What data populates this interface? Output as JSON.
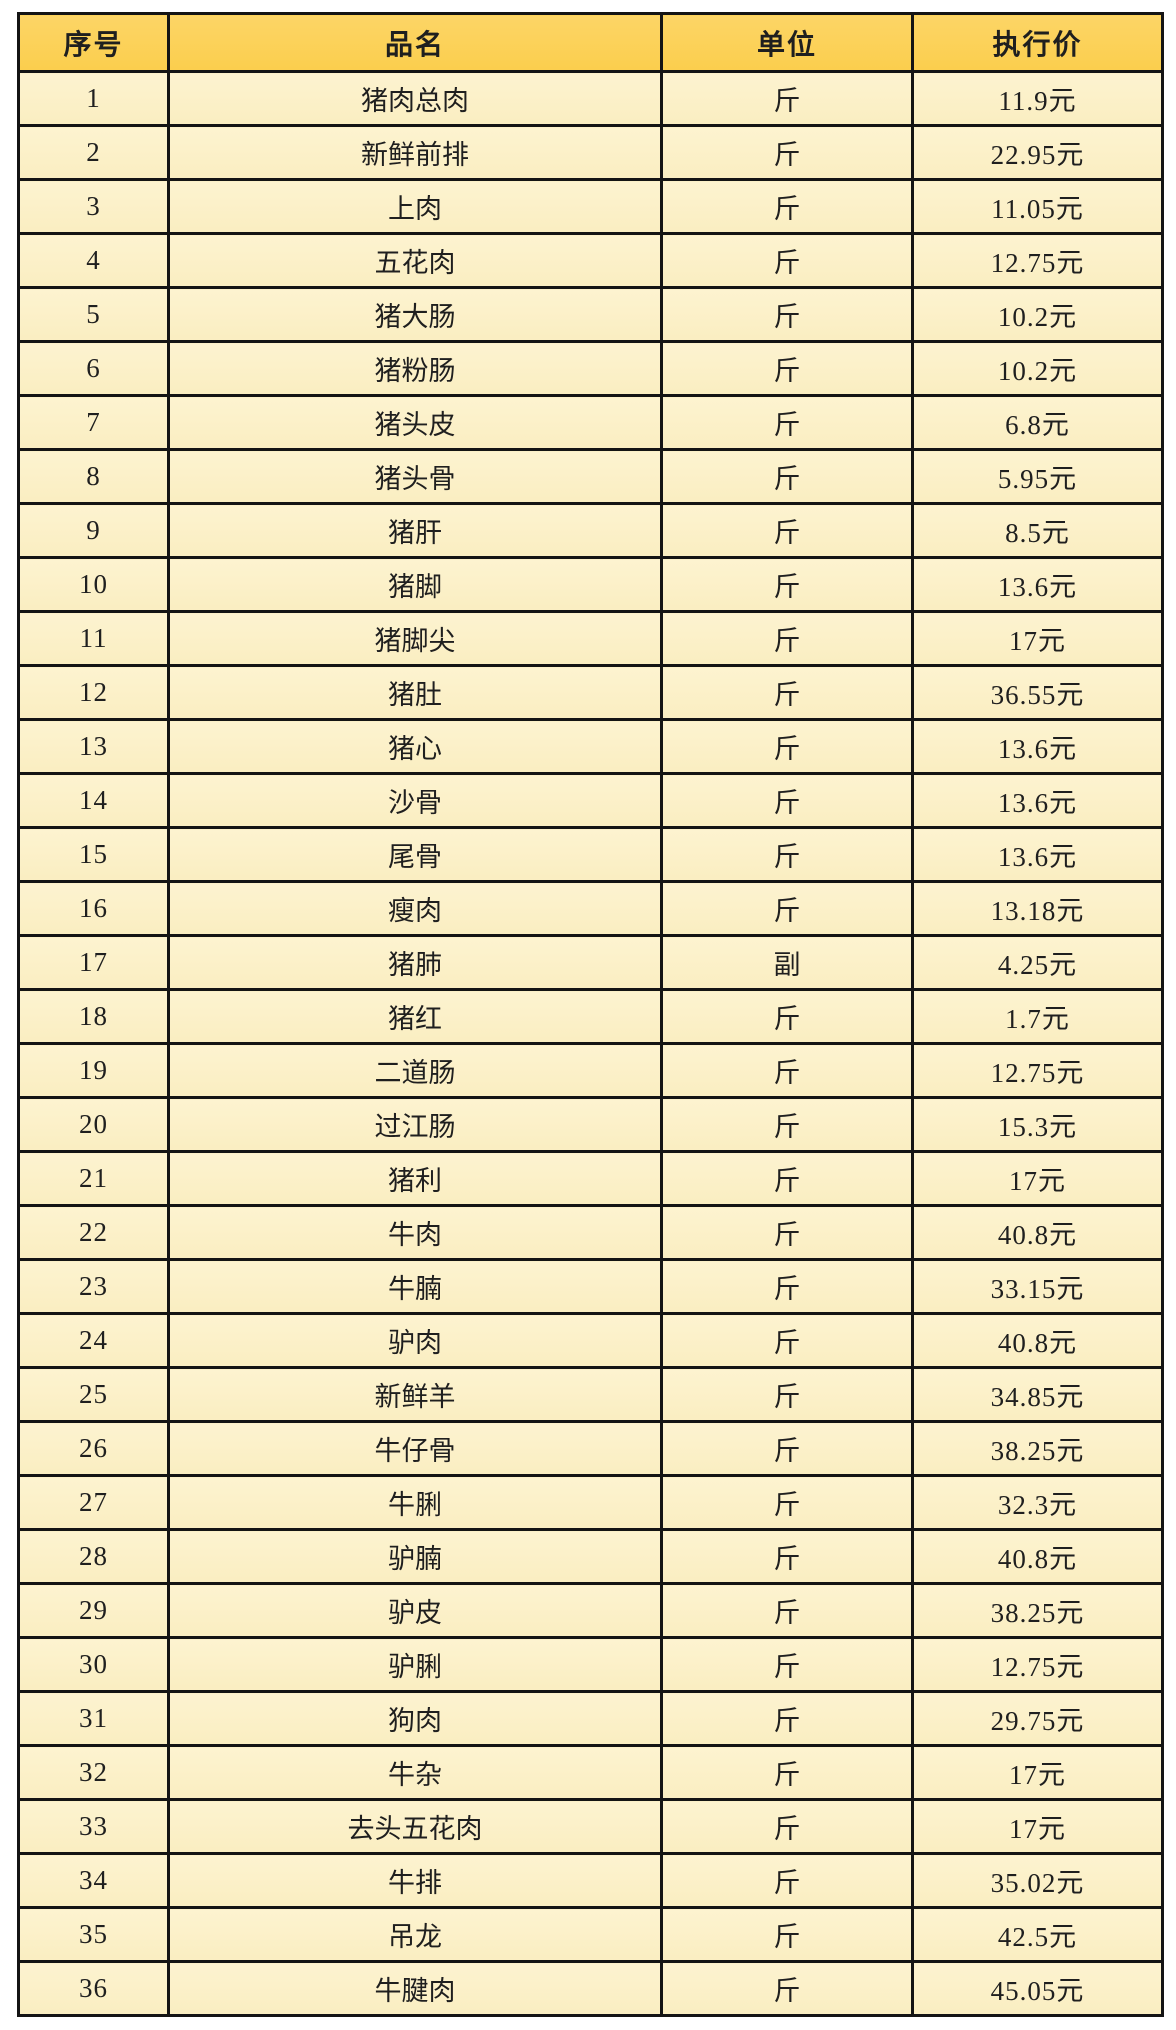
{
  "table": {
    "columns": [
      {
        "key": "index",
        "label": "序号"
      },
      {
        "key": "name",
        "label": "品名"
      },
      {
        "key": "unit",
        "label": "单位"
      },
      {
        "key": "price",
        "label": "执行价"
      }
    ],
    "rows": [
      {
        "index": "1",
        "name": "猪肉总肉",
        "unit": "斤",
        "price": "11.9元"
      },
      {
        "index": "2",
        "name": "新鲜前排",
        "unit": "斤",
        "price": "22.95元"
      },
      {
        "index": "3",
        "name": "上肉",
        "unit": "斤",
        "price": "11.05元"
      },
      {
        "index": "4",
        "name": "五花肉",
        "unit": "斤",
        "price": "12.75元"
      },
      {
        "index": "5",
        "name": "猪大肠",
        "unit": "斤",
        "price": "10.2元"
      },
      {
        "index": "6",
        "name": "猪粉肠",
        "unit": "斤",
        "price": "10.2元"
      },
      {
        "index": "7",
        "name": "猪头皮",
        "unit": "斤",
        "price": "6.8元"
      },
      {
        "index": "8",
        "name": "猪头骨",
        "unit": "斤",
        "price": "5.95元"
      },
      {
        "index": "9",
        "name": "猪肝",
        "unit": "斤",
        "price": "8.5元"
      },
      {
        "index": "10",
        "name": "猪脚",
        "unit": "斤",
        "price": "13.6元"
      },
      {
        "index": "11",
        "name": "猪脚尖",
        "unit": "斤",
        "price": "17元"
      },
      {
        "index": "12",
        "name": "猪肚",
        "unit": "斤",
        "price": "36.55元"
      },
      {
        "index": "13",
        "name": "猪心",
        "unit": "斤",
        "price": "13.6元"
      },
      {
        "index": "14",
        "name": "沙骨",
        "unit": "斤",
        "price": "13.6元"
      },
      {
        "index": "15",
        "name": "尾骨",
        "unit": "斤",
        "price": "13.6元"
      },
      {
        "index": "16",
        "name": "瘦肉",
        "unit": "斤",
        "price": "13.18元"
      },
      {
        "index": "17",
        "name": "猪肺",
        "unit": "副",
        "price": "4.25元"
      },
      {
        "index": "18",
        "name": "猪红",
        "unit": "斤",
        "price": "1.7元"
      },
      {
        "index": "19",
        "name": "二道肠",
        "unit": "斤",
        "price": "12.75元"
      },
      {
        "index": "20",
        "name": "过江肠",
        "unit": "斤",
        "price": "15.3元"
      },
      {
        "index": "21",
        "name": "猪利",
        "unit": "斤",
        "price": "17元"
      },
      {
        "index": "22",
        "name": "牛肉",
        "unit": "斤",
        "price": "40.8元"
      },
      {
        "index": "23",
        "name": "牛腩",
        "unit": "斤",
        "price": "33.15元"
      },
      {
        "index": "24",
        "name": "驴肉",
        "unit": "斤",
        "price": "40.8元"
      },
      {
        "index": "25",
        "name": "新鲜羊",
        "unit": "斤",
        "price": "34.85元"
      },
      {
        "index": "26",
        "name": "牛仔骨",
        "unit": "斤",
        "price": "38.25元"
      },
      {
        "index": "27",
        "name": "牛脷",
        "unit": "斤",
        "price": "32.3元"
      },
      {
        "index": "28",
        "name": "驴腩",
        "unit": "斤",
        "price": "40.8元"
      },
      {
        "index": "29",
        "name": "驴皮",
        "unit": "斤",
        "price": "38.25元"
      },
      {
        "index": "30",
        "name": "驴脷",
        "unit": "斤",
        "price": "12.75元"
      },
      {
        "index": "31",
        "name": "狗肉",
        "unit": "斤",
        "price": "29.75元"
      },
      {
        "index": "32",
        "name": "牛杂",
        "unit": "斤",
        "price": "17元"
      },
      {
        "index": "33",
        "name": "去头五花肉",
        "unit": "斤",
        "price": "17元"
      },
      {
        "index": "34",
        "name": "牛排",
        "unit": "斤",
        "price": "35.02元"
      },
      {
        "index": "35",
        "name": "吊龙",
        "unit": "斤",
        "price": "42.5元"
      },
      {
        "index": "36",
        "name": "牛腱肉",
        "unit": "斤",
        "price": "45.05元"
      }
    ]
  },
  "colors": {
    "header_bg": "#fbd056",
    "row_bg": "#fbf0c7",
    "border": "#141414",
    "text": "#1f1f1f"
  }
}
